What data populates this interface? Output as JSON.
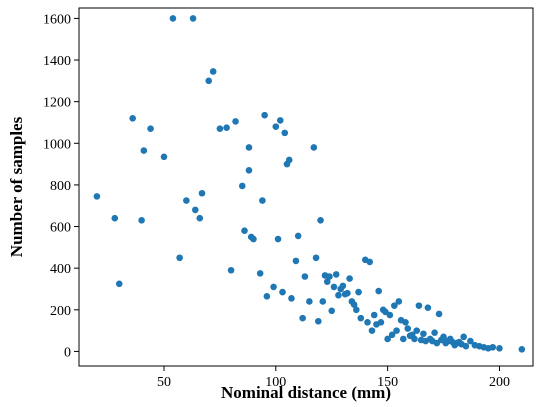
{
  "chart_data": {
    "type": "scatter",
    "title": "",
    "xlabel": "Nominal distance (mm)",
    "ylabel": "Number of samples",
    "xlim": [
      12,
      215
    ],
    "ylim": [
      -70,
      1650
    ],
    "xticks": [
      50,
      100,
      150,
      200
    ],
    "yticks": [
      0,
      200,
      400,
      600,
      800,
      1000,
      1200,
      1400,
      1600
    ],
    "grid": false,
    "legend": "none",
    "marker_color": "#1f77b4",
    "series": [
      {
        "x": [
          20,
          28,
          30,
          36,
          40,
          41,
          44,
          50,
          54,
          57,
          60,
          63,
          64,
          66,
          67,
          70,
          72,
          75,
          78,
          80,
          82,
          85,
          86,
          88,
          88,
          89,
          90,
          93,
          94,
          95,
          96,
          99,
          100,
          101,
          102,
          103,
          104,
          105,
          106,
          107,
          109,
          110,
          112,
          113,
          115,
          117,
          118,
          119,
          120,
          121,
          122,
          123,
          124,
          125,
          126,
          127,
          128,
          129,
          130,
          131,
          132,
          133,
          134,
          135,
          136,
          137,
          138,
          140,
          141,
          142,
          143,
          144,
          145,
          146,
          147,
          148,
          149,
          150,
          151,
          152,
          153,
          154,
          155,
          156,
          157,
          158,
          159,
          160,
          161,
          162,
          163,
          164,
          165,
          166,
          167,
          168,
          169,
          170,
          171,
          172,
          173,
          174,
          175,
          176,
          177,
          178,
          179,
          180,
          181,
          182,
          183,
          184,
          185,
          187,
          189,
          191,
          193,
          195,
          197,
          200,
          210
        ],
        "y": [
          745,
          640,
          325,
          1120,
          630,
          965,
          1070,
          935,
          1600,
          450,
          725,
          1600,
          680,
          640,
          760,
          1300,
          1345,
          1070,
          1075,
          390,
          1105,
          795,
          580,
          870,
          980,
          550,
          540,
          375,
          725,
          1135,
          265,
          310,
          1080,
          540,
          1110,
          285,
          1050,
          900,
          920,
          255,
          435,
          555,
          160,
          360,
          240,
          980,
          450,
          145,
          630,
          240,
          365,
          335,
          360,
          195,
          310,
          370,
          270,
          300,
          315,
          275,
          280,
          350,
          240,
          225,
          200,
          285,
          160,
          440,
          140,
          430,
          100,
          175,
          130,
          290,
          140,
          200,
          190,
          60,
          175,
          80,
          220,
          100,
          240,
          150,
          60,
          140,
          110,
          75,
          80,
          60,
          100,
          220,
          55,
          85,
          50,
          210,
          60,
          50,
          90,
          40,
          180,
          55,
          70,
          40,
          50,
          60,
          45,
          30,
          40,
          45,
          35,
          70,
          25,
          50,
          30,
          25,
          20,
          15,
          20,
          15,
          10
        ]
      }
    ]
  }
}
